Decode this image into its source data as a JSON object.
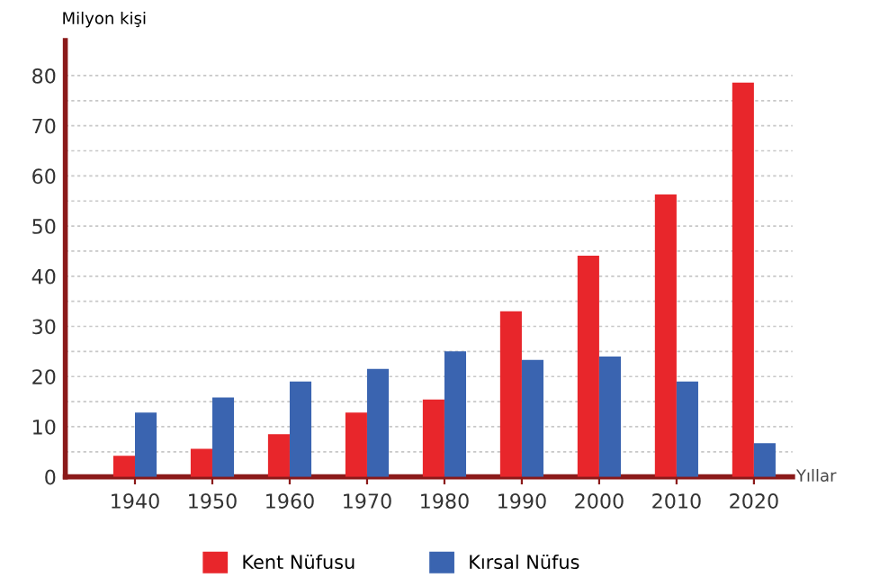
{
  "chart_data": {
    "type": "bar",
    "categories": [
      "1940",
      "1950",
      "1960",
      "1970",
      "1980",
      "1990",
      "2000",
      "2010",
      "2020"
    ],
    "series": [
      {
        "name": "Kent Nüfusu",
        "color": "#e8262b",
        "values": [
          4.2,
          5.6,
          8.5,
          12.8,
          15.4,
          33,
          44.1,
          56.3,
          78.6
        ]
      },
      {
        "name": "Kırsal Nüfus",
        "color": "#3a64b0",
        "values": [
          12.8,
          15.8,
          19,
          21.5,
          25,
          23.3,
          24,
          19,
          6.7
        ]
      }
    ],
    "ylabel": "Milyon kişi",
    "xlabel": "Yıllar",
    "ylim": [
      0,
      87
    ],
    "yticks": [
      0,
      {
        "value": 5,
        "label": null
      },
      10,
      {
        "value": 15,
        "label": null
      },
      20,
      {
        "value": 25,
        "label": null
      },
      30,
      {
        "value": 35,
        "label": null
      },
      40,
      {
        "value": 45,
        "label": null
      },
      50,
      {
        "value": 55,
        "label": null
      },
      60,
      {
        "value": 65,
        "label": null
      },
      70,
      {
        "value": 75,
        "label": null
      },
      80
    ],
    "grid": "y",
    "legend": "bottom"
  }
}
